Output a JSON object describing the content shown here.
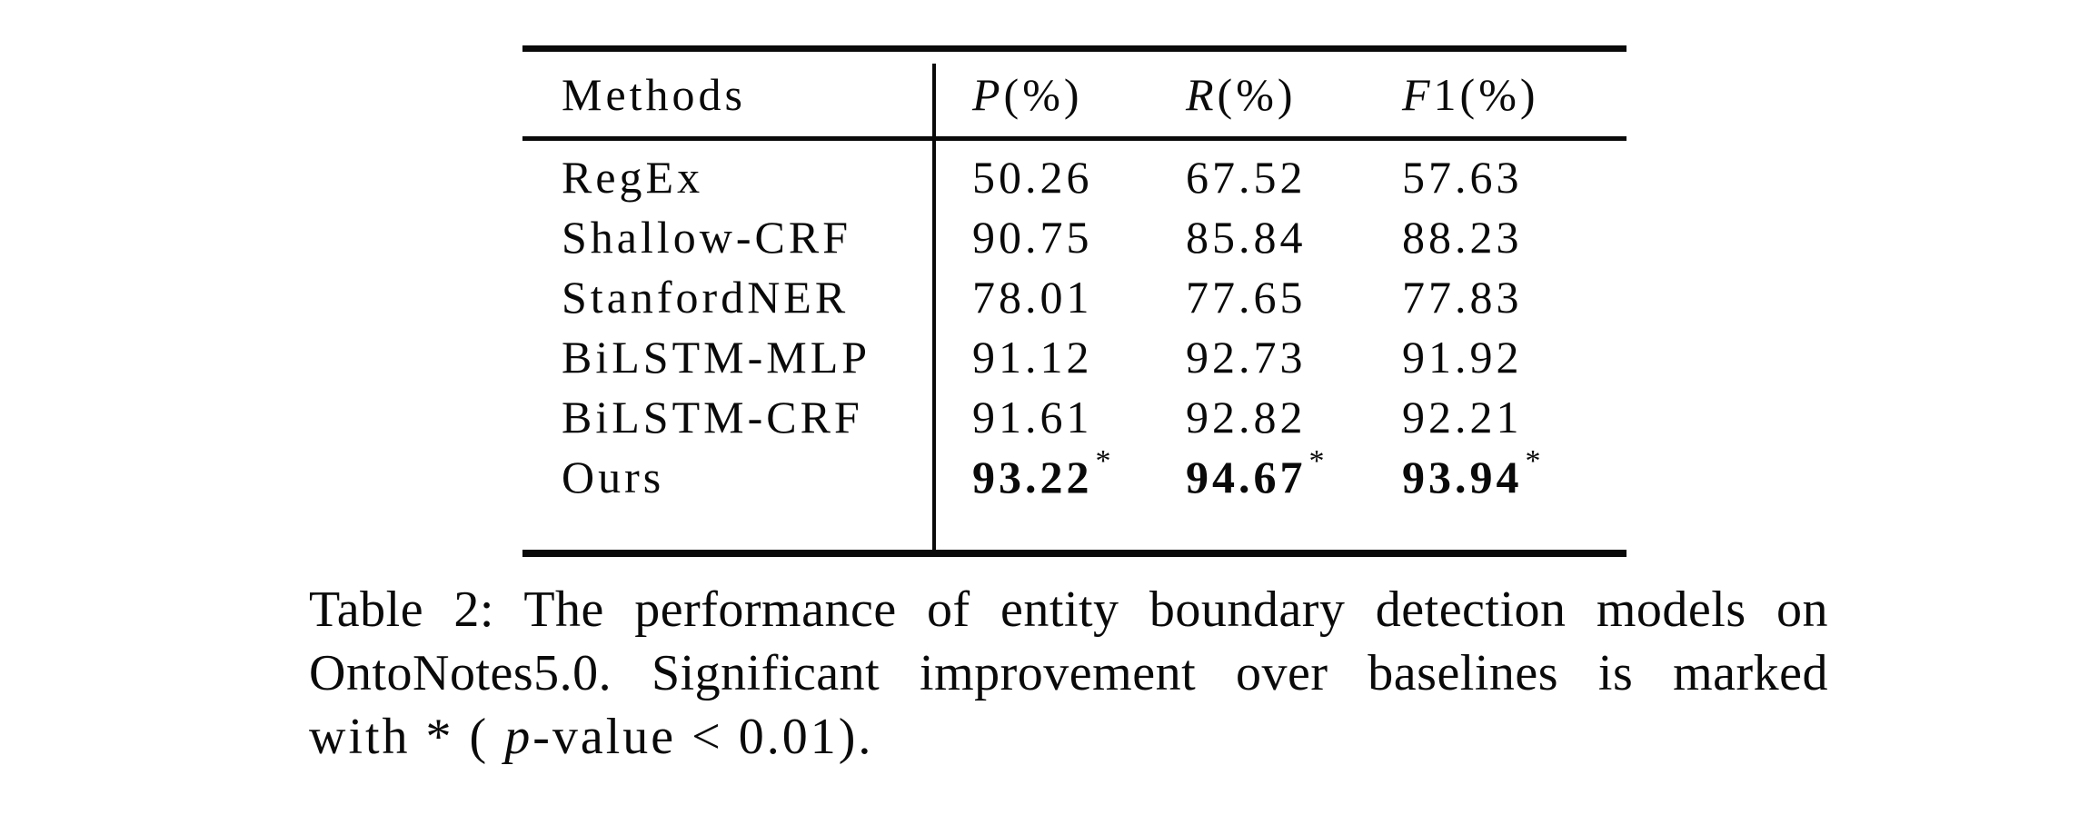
{
  "colors": {
    "text": "#0a0a0a",
    "background": "#ffffff",
    "rule": "#0a0a0a"
  },
  "chart_data": {
    "type": "table",
    "columns": [
      "Methods",
      "P(%)",
      "R(%)",
      "F1(%)"
    ],
    "rows": [
      [
        "RegEx",
        50.26,
        67.52,
        57.63
      ],
      [
        "Shallow-CRF",
        90.75,
        85.84,
        88.23
      ],
      [
        "StanfordNER",
        78.01,
        77.65,
        77.83
      ],
      [
        "BiLSTM-MLP",
        91.12,
        92.73,
        91.92
      ],
      [
        "BiLSTM-CRF",
        91.61,
        92.82,
        92.21
      ],
      [
        "Ours",
        93.22,
        94.67,
        93.94
      ]
    ],
    "bold_row": "Ours",
    "starred_row": "Ours",
    "star_marker": "*",
    "title": "Table 2: The performance of entity boundary detection models on OntoNotes5.0. Significant improvement over baselines is marked with * ( p-value < 0.01)."
  },
  "table": {
    "header": {
      "methods": "Methods",
      "col_p": {
        "italic": "P",
        "rest": "(%)"
      },
      "col_r": {
        "italic": "R",
        "rest": "(%)"
      },
      "col_f1": {
        "italic": "F",
        "rest": "1(%)"
      }
    },
    "star_symbol": "*",
    "rows": [
      {
        "method": "RegEx",
        "p": "50.26",
        "r": "67.52",
        "f1": "57.63",
        "bold": false,
        "star": false
      },
      {
        "method": "Shallow-CRF",
        "p": "90.75",
        "r": "85.84",
        "f1": "88.23",
        "bold": false,
        "star": false
      },
      {
        "method": "StanfordNER",
        "p": "78.01",
        "r": "77.65",
        "f1": "77.83",
        "bold": false,
        "star": false
      },
      {
        "method": "BiLSTM-MLP",
        "p": "91.12",
        "r": "92.73",
        "f1": "91.92",
        "bold": false,
        "star": false
      },
      {
        "method": "BiLSTM-CRF",
        "p": "91.61",
        "r": "92.82",
        "f1": "92.21",
        "bold": false,
        "star": false
      },
      {
        "method": "Ours",
        "p": "93.22",
        "r": "94.67",
        "f1": "93.94",
        "bold": true,
        "star": true
      }
    ]
  },
  "caption": {
    "line1": "Table 2: The performance of entity boundary detection models on",
    "line2": "OntoNotes5.0. Significant improvement over baselines is marked",
    "line3": {
      "pre": "with * ( ",
      "italic": "p",
      "post": "-value < 0.01)."
    }
  }
}
